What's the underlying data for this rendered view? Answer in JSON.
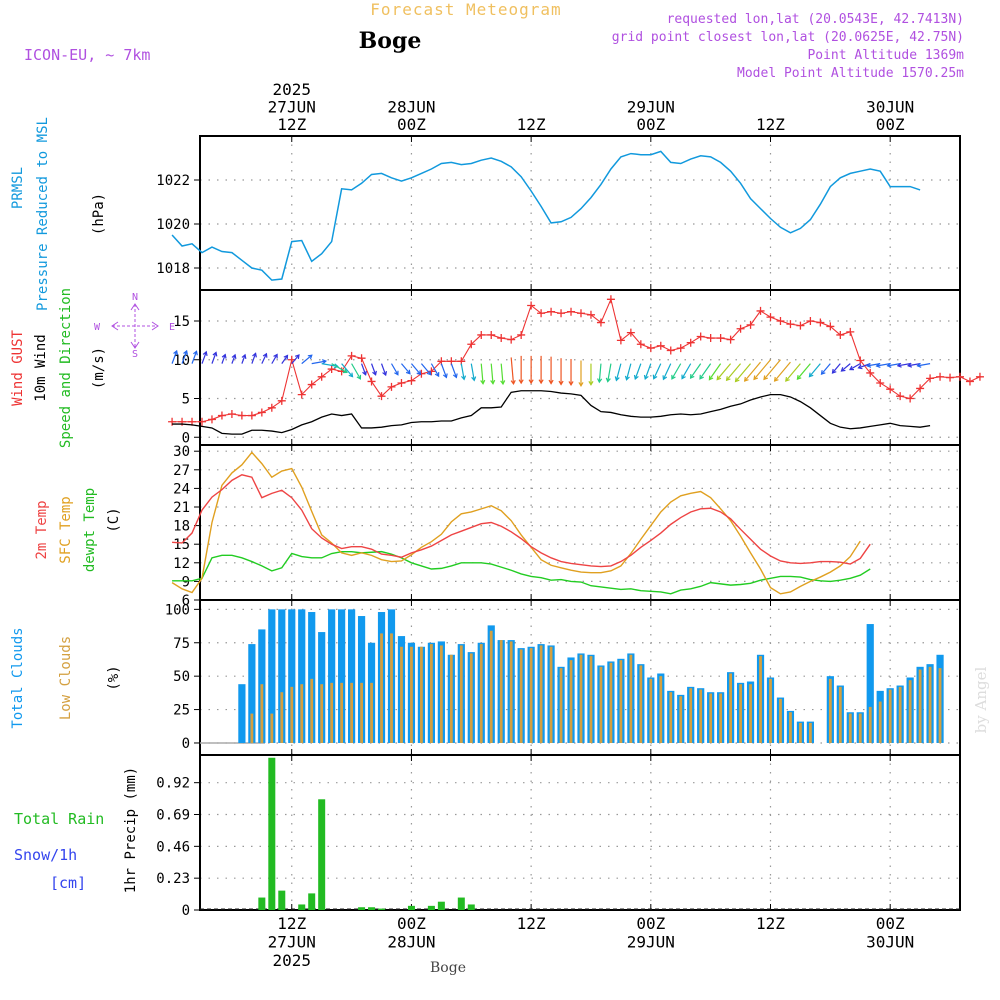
{
  "header": {
    "title": "Forecast Meteogram",
    "location": "Boge",
    "model": "ICON-EU, ~ 7km",
    "requested": "requested lon,lat (20.0543E, 42.7413N)",
    "grid_point": "grid point closest lon,lat (20.0625E, 42.75N)",
    "point_altitude": "Point Altitude 1369m",
    "model_altitude": "Model Point Altitude 1570.25m",
    "footer_location": "Boge",
    "watermark": "by Angel"
  },
  "time_axis": {
    "top_labels": [
      {
        "t": 12,
        "lines": [
          "2025",
          "27JUN",
          "12Z"
        ]
      },
      {
        "t": 24,
        "lines": [
          "28JUN",
          "00Z"
        ]
      },
      {
        "t": 36,
        "lines": [
          "12Z"
        ]
      },
      {
        "t": 48,
        "lines": [
          "29JUN",
          "00Z"
        ]
      },
      {
        "t": 60,
        "lines": [
          "12Z"
        ]
      },
      {
        "t": 72,
        "lines": [
          "30JUN",
          "00Z"
        ]
      }
    ],
    "bottom_labels": [
      {
        "t": 12,
        "lines": [
          "12Z",
          "27JUN",
          "2025"
        ]
      },
      {
        "t": 24,
        "lines": [
          "00Z",
          "28JUN"
        ]
      },
      {
        "t": 36,
        "lines": [
          "12Z"
        ]
      },
      {
        "t": 48,
        "lines": [
          "00Z",
          "29JUN"
        ]
      },
      {
        "t": 60,
        "lines": [
          "12Z"
        ]
      },
      {
        "t": 72,
        "lines": [
          "00Z",
          "30JUN"
        ]
      }
    ]
  },
  "colors": {
    "pressure": "#1199dd",
    "gust": "#ee3333",
    "wind": "#000000",
    "temp": "#ee4444",
    "sfc": "#e0a020",
    "dewpt": "#22cc22",
    "total_clouds": "#1199ee",
    "low_clouds": "#d4a040",
    "rain": "#22bb22",
    "snow": "#3344ee",
    "title": "#f0c060",
    "info": "#b050e0",
    "grid": "#999999"
  },
  "chart_data": [
    {
      "type": "line",
      "panel": "pressure",
      "ylabel_lines": [
        "PRMSL",
        "Pressure Reduced to MSL"
      ],
      "unit": "(hPa)",
      "ylim": [
        1017,
        1024
      ],
      "yticks": [
        1018,
        1020,
        1022
      ],
      "grid": true,
      "series": [
        {
          "values": [
            1019.5,
            1019.0,
            1019.1,
            1018.7,
            1018.95,
            1018.75,
            1018.7,
            1018.35,
            1018.0,
            1017.9,
            1017.45,
            1017.5,
            1019.2,
            1019.25,
            1018.3,
            1018.65,
            1019.2,
            1021.6,
            1021.55,
            1021.85,
            1022.25,
            1022.3,
            1022.1,
            1021.95,
            1022.1,
            1022.3,
            1022.5,
            1022.75,
            1022.8,
            1022.7,
            1022.75,
            1022.9,
            1023.0,
            1022.85,
            1022.6,
            1022.15,
            1021.5,
            1020.8,
            1020.05,
            1020.1,
            1020.3,
            1020.7,
            1021.2,
            1021.8,
            1022.5,
            1023.05,
            1023.2,
            1023.15,
            1023.15,
            1023.3,
            1022.8,
            1022.75,
            1022.95,
            1023.1,
            1023.05,
            1022.8,
            1022.4,
            1021.85,
            1021.15,
            1020.7,
            1020.25,
            1019.85,
            1019.6,
            1019.8,
            1020.2,
            1020.9,
            1021.7,
            1022.1,
            1022.3,
            1022.4,
            1022.5,
            1022.4,
            1021.7,
            1021.7,
            1021.7,
            1021.55
          ]
        }
      ]
    },
    {
      "type": "line",
      "panel": "wind",
      "ylabel_lines": [
        "Wind GUST",
        "10m Wind",
        "Speed and Direction"
      ],
      "unit": "(m/s)",
      "compass": {
        "n": "N",
        "s": "S",
        "w": "W",
        "e": "E"
      },
      "ylim": [
        -1,
        19
      ],
      "yticks": [
        0,
        5,
        10,
        15
      ],
      "grid": true,
      "series": [
        {
          "name": "Wind GUST",
          "values": [
            2.0,
            2.0,
            2.0,
            2.0,
            2.3,
            2.8,
            3.0,
            2.8,
            2.8,
            3.2,
            3.8,
            4.7,
            10.0,
            5.5,
            6.8,
            7.8,
            8.8,
            8.5,
            10.5,
            10.2,
            7.2,
            5.3,
            6.5,
            7.0,
            7.3,
            8.2,
            8.5,
            9.8,
            9.8,
            9.8,
            12.0,
            13.2,
            13.2,
            12.8,
            12.6,
            13.2,
            17.0,
            16.0,
            16.2,
            16.0,
            16.2,
            16.0,
            15.8,
            14.8,
            17.8,
            12.5,
            13.5,
            12.0,
            11.5,
            11.8,
            11.2,
            11.5,
            12.2,
            13.0,
            12.8,
            12.8,
            12.6,
            14.0,
            14.5,
            16.3,
            15.5,
            15.0,
            14.6,
            14.4,
            15.0,
            14.8,
            14.3,
            13.2,
            13.6,
            9.9,
            8.3,
            7.0,
            6.2,
            5.3,
            5.0,
            6.3,
            7.6,
            7.8,
            7.7,
            7.8,
            7.2,
            7.8
          ]
        },
        {
          "name": "10m Wind",
          "values": [
            1.7,
            1.7,
            1.6,
            1.4,
            1.2,
            0.5,
            0.4,
            0.4,
            0.9,
            0.9,
            0.8,
            0.6,
            1.0,
            1.6,
            2.0,
            2.6,
            3.0,
            2.8,
            3.0,
            1.2,
            1.2,
            1.3,
            1.5,
            1.6,
            1.9,
            2.0,
            2.0,
            2.1,
            2.1,
            2.5,
            2.8,
            3.8,
            3.8,
            3.9,
            5.8,
            6.0,
            6.0,
            6.0,
            5.9,
            5.7,
            5.6,
            5.4,
            4.1,
            3.3,
            3.2,
            2.9,
            2.7,
            2.6,
            2.6,
            2.7,
            2.9,
            3.0,
            2.9,
            3.0,
            3.3,
            3.6,
            4.0,
            4.3,
            4.8,
            5.2,
            5.5,
            5.5,
            5.2,
            4.6,
            3.8,
            2.8,
            1.8,
            1.3,
            1.1,
            1.2,
            1.4,
            1.6,
            1.8,
            1.5,
            1.4,
            1.3,
            1.5
          ]
        },
        {
          "name": "10m Wind Direction",
          "directions_deg": [
            200,
            200,
            200,
            200,
            200,
            200,
            200,
            200,
            200,
            205,
            210,
            215,
            220,
            230,
            260,
            280,
            300,
            320,
            330,
            340,
            340,
            340,
            330,
            320,
            320,
            320,
            330,
            340,
            340,
            350,
            350,
            355,
            355,
            355,
            355,
            0,
            0,
            0,
            0,
            0,
            0,
            0,
            0,
            5,
            10,
            15,
            15,
            20,
            20,
            25,
            25,
            30,
            30,
            35,
            35,
            35,
            40,
            40,
            40,
            40,
            40,
            40,
            40,
            40,
            40,
            40,
            40,
            40,
            50,
            60,
            70,
            80,
            80,
            80,
            80,
            80,
            80,
            80,
            80,
            80,
            80,
            80
          ]
        }
      ]
    },
    {
      "type": "line",
      "panel": "temperature",
      "ylabel_lines": [
        "2m Temp",
        "SFC Temp",
        "dewpt Temp"
      ],
      "unit": "(C)",
      "ylim": [
        6,
        31
      ],
      "yticks": [
        6,
        9,
        12,
        15,
        18,
        21,
        24,
        27,
        30
      ],
      "grid": true,
      "series": [
        {
          "name": "2m Temp",
          "values": [
            15.3,
            15.2,
            16.8,
            20.5,
            22.6,
            23.8,
            25.3,
            26.2,
            25.8,
            22.5,
            23.2,
            23.7,
            22.5,
            20.5,
            17.5,
            16.0,
            15.0,
            14.3,
            14.6,
            14.6,
            14.2,
            13.4,
            13.2,
            12.9,
            13.6,
            14.1,
            14.7,
            15.6,
            16.5,
            17.1,
            17.7,
            18.3,
            18.5,
            17.9,
            17.0,
            15.9,
            14.6,
            13.6,
            12.8,
            12.2,
            11.9,
            11.7,
            11.5,
            11.4,
            11.5,
            12.2,
            13.2,
            14.5,
            15.6,
            16.8,
            18.2,
            19.3,
            20.2,
            20.7,
            20.8,
            20.2,
            19.1,
            17.4,
            15.8,
            14.2,
            13.1,
            12.3,
            12.0,
            11.9,
            12.0,
            12.2,
            12.2,
            12.1,
            11.8,
            12.7,
            15.0
          ]
        },
        {
          "name": "SFC Temp",
          "values": [
            8.8,
            7.8,
            7.2,
            9.5,
            18.5,
            24.5,
            26.5,
            27.8,
            29.8,
            28.0,
            25.8,
            26.8,
            27.2,
            24.2,
            20.3,
            16.5,
            15.2,
            13.6,
            13.2,
            13.6,
            13.2,
            12.5,
            12.2,
            12.3,
            13.3,
            14.5,
            15.4,
            16.6,
            18.6,
            19.9,
            20.2,
            20.7,
            21.2,
            20.4,
            18.8,
            16.5,
            14.5,
            12.5,
            11.6,
            11.2,
            10.8,
            10.5,
            10.4,
            10.4,
            10.7,
            11.5,
            13.5,
            15.8,
            18.0,
            20.2,
            21.8,
            22.8,
            23.2,
            23.5,
            22.5,
            20.7,
            18.8,
            16.3,
            13.6,
            11.0,
            8.0,
            7.0,
            7.3,
            8.2,
            9.0,
            9.7,
            10.5,
            11.5,
            13.0,
            15.5
          ]
        },
        {
          "name": "dewpt Temp",
          "values": [
            9.1,
            9.1,
            9.1,
            9.5,
            12.8,
            13.2,
            13.2,
            12.8,
            12.2,
            11.5,
            10.7,
            11.2,
            13.5,
            13.0,
            12.8,
            12.8,
            13.5,
            13.8,
            13.8,
            13.6,
            13.7,
            13.8,
            13.4,
            12.8,
            12.0,
            11.5,
            11.0,
            11.1,
            11.5,
            12.0,
            12.0,
            12.0,
            11.8,
            11.3,
            10.8,
            10.2,
            9.8,
            9.6,
            9.2,
            9.3,
            9.0,
            8.9,
            8.3,
            8.1,
            7.9,
            7.7,
            7.8,
            7.5,
            7.4,
            7.3,
            7.0,
            7.6,
            7.8,
            8.2,
            8.8,
            8.6,
            8.4,
            8.5,
            8.7,
            9.2,
            9.5,
            9.8,
            9.8,
            9.7,
            9.3,
            9.1,
            9.0,
            9.2,
            9.5,
            10.0,
            11.0
          ]
        }
      ]
    },
    {
      "type": "bar",
      "panel": "clouds",
      "ylabel_lines": [
        "Total Clouds",
        "Low Clouds"
      ],
      "unit": "(%)",
      "ylim": [
        -9,
        107
      ],
      "yticks": [
        0,
        25,
        50,
        75,
        100
      ],
      "grid": true,
      "series": [
        {
          "name": "Total Clouds",
          "values": [
            0,
            0,
            0,
            0,
            0,
            0,
            0,
            44,
            74,
            85,
            100,
            100,
            100,
            100,
            98,
            83,
            100,
            100,
            100,
            95,
            75,
            98,
            100,
            80,
            75,
            72,
            75,
            76,
            66,
            74,
            68,
            75,
            88,
            77,
            77,
            71,
            72,
            74,
            73,
            57,
            64,
            67,
            66,
            58,
            61,
            63,
            67,
            59,
            49,
            52,
            39,
            36,
            42,
            41,
            38,
            38,
            53,
            45,
            46,
            66,
            49,
            34,
            24,
            16,
            16,
            0,
            50,
            43,
            23,
            23,
            89,
            39,
            41,
            43,
            49,
            57,
            59,
            66
          ]
        },
        {
          "name": "Low Clouds",
          "values": [
            0,
            0,
            0,
            0,
            0,
            0,
            0,
            0,
            22,
            44,
            22,
            38,
            42,
            44,
            48,
            44,
            45,
            45,
            45,
            45,
            45,
            82,
            82,
            72,
            72,
            72,
            74,
            73,
            66,
            73,
            67,
            74,
            84,
            77,
            76,
            70,
            71,
            73,
            72,
            56,
            62,
            66,
            65,
            57,
            60,
            62,
            66,
            58,
            48,
            50,
            38,
            35,
            41,
            40,
            37,
            37,
            52,
            44,
            44,
            65,
            48,
            33,
            23,
            15,
            15,
            0,
            48,
            42,
            22,
            22,
            27,
            31,
            40,
            42,
            47,
            55,
            57,
            56
          ]
        }
      ]
    },
    {
      "type": "bar",
      "panel": "precipitation",
      "ylabel": "1hr Precip (mm)",
      "legend_lines": [
        "Total  Rain",
        "Snow/1h",
        "[cm]"
      ],
      "ylim": [
        0,
        1.12
      ],
      "yticks": [
        0,
        0.23,
        0.46,
        0.69,
        0.92
      ],
      "grid": true,
      "series": [
        {
          "name": "Total Rain",
          "values": [
            0,
            0,
            0,
            0,
            0,
            0,
            0,
            0,
            0,
            0.09,
            1.1,
            0.14,
            0,
            0.04,
            0.12,
            0.8,
            0,
            0,
            0,
            0.02,
            0.02,
            0.01,
            0,
            0,
            0.03,
            0,
            0.03,
            0.06,
            0,
            0.09,
            0.04,
            0,
            0,
            0,
            0,
            0,
            0,
            0,
            0,
            0,
            0,
            0,
            0,
            0,
            0,
            0,
            0,
            0,
            0,
            0,
            0,
            0,
            0,
            0,
            0,
            0,
            0,
            0,
            0,
            0,
            0,
            0,
            0,
            0,
            0,
            0,
            0,
            0,
            0,
            0,
            0,
            0,
            0,
            0,
            0,
            0,
            0,
            0
          ]
        },
        {
          "name": "Snow/1h",
          "values": []
        }
      ]
    }
  ]
}
